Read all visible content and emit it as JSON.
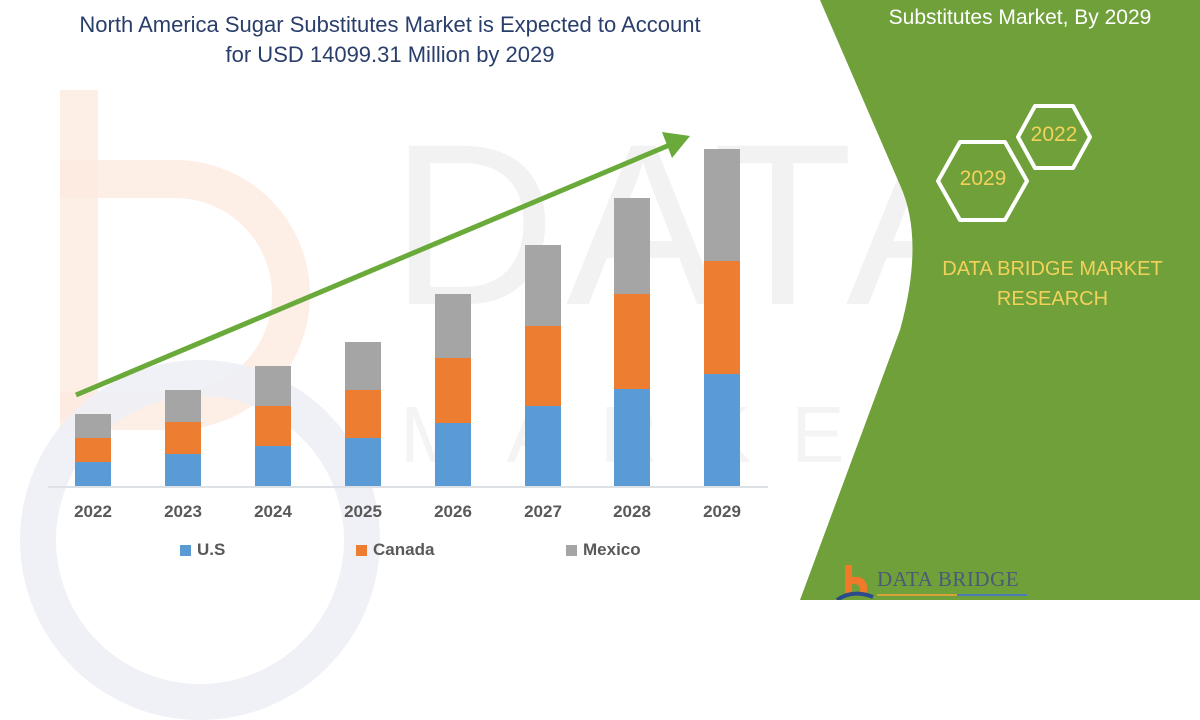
{
  "title": {
    "line1": "North America Sugar Substitutes Market is Expected to Account",
    "line2": "for USD 14099.31 Million by 2029"
  },
  "side_panel": {
    "title_partial": "Substitutes Market, By 2029",
    "hex_left": "2029",
    "hex_right": "2022",
    "brand_line1": "DATA BRIDGE MARKET",
    "brand_line2": "RESEARCH",
    "logo_text": "DATA BRIDGE",
    "panel_color": "#70a03a",
    "accent_color": "#f2d25a"
  },
  "watermark": {
    "big_text": "DATA BRIDGE",
    "small_text": "MARKET RESEARCH"
  },
  "legend": [
    {
      "label": "U.S",
      "color": "#5b9bd5"
    },
    {
      "label": "Canada",
      "color": "#ed7d31"
    },
    {
      "label": "Mexico",
      "color": "#a5a5a5"
    }
  ],
  "chart_data": {
    "type": "bar",
    "stacked": true,
    "title": "North America Sugar Substitutes Market is Expected to Account for USD 14099.31 Million by 2029",
    "xlabel": "",
    "ylabel": "",
    "y_axis_visible": false,
    "grid": false,
    "legend_position": "bottom",
    "units_note": "No value axis shown; values are relative bar heights (pixels)",
    "categories": [
      "2022",
      "2023",
      "2024",
      "2025",
      "2026",
      "2027",
      "2028",
      "2029"
    ],
    "series": [
      {
        "name": "U.S",
        "color": "#5b9bd5",
        "values": [
          24,
          32,
          40,
          48,
          63,
          80,
          97,
          112
        ]
      },
      {
        "name": "Canada",
        "color": "#ed7d31",
        "values": [
          24,
          32,
          40,
          48,
          65,
          80,
          95,
          113
        ]
      },
      {
        "name": "Mexico",
        "color": "#a5a5a5",
        "values": [
          24,
          32,
          40,
          48,
          64,
          81,
          96,
          112
        ]
      }
    ],
    "annotations": [
      "Green upward trend arrow from 2022 to 2029"
    ],
    "trend_arrow_color": "#6aaa3a"
  }
}
